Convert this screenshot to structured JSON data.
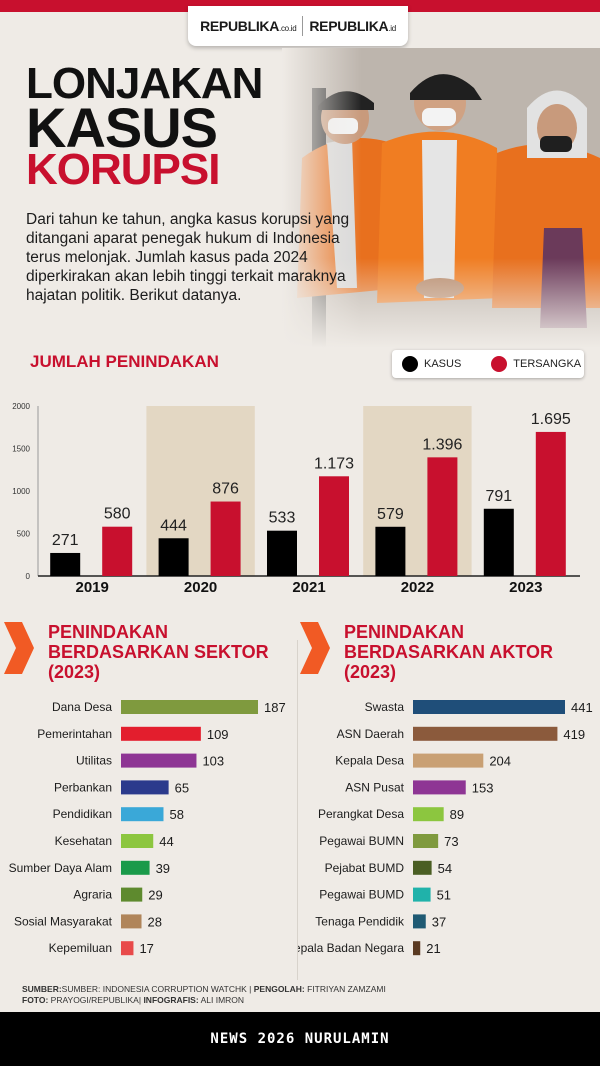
{
  "header": {
    "logo_left": "REPUBLIKA",
    "logo_left_suffix": ".co.id",
    "logo_right": "REPUBLIKA",
    "logo_right_suffix": ".id",
    "brand_color": "#c8102e"
  },
  "title": {
    "line1": "LONJAKAN",
    "line2": "KASUS",
    "line3": "KORUPSI"
  },
  "intro": "Dari tahun ke tahun, angka kasus korupsi yang ditangani aparat penegak hukum di Indonesia terus melonjak. Jumlah kasus pada 2024 diperkirakan akan lebih tinggi terkait maraknya hajatan politik. Berikut datanya.",
  "section1": {
    "title": "JUMLAH PENINDAKAN",
    "legend_kasus": "KASUS",
    "legend_tersangka": "TERSANGKA"
  },
  "section2": {
    "title_l1": "PENINDAKAN",
    "title_l2": "BERDASARKAN SEKTOR",
    "title_l3": "(2023)"
  },
  "section3": {
    "title_l1": "PENINDAKAN",
    "title_l2": "BERDASARKAN AKTOR",
    "title_l3": "(2023)"
  },
  "chart_data": [
    {
      "type": "bar",
      "title": "JUMLAH PENINDAKAN",
      "categories": [
        "2019",
        "2020",
        "2021",
        "2022",
        "2023"
      ],
      "series": [
        {
          "name": "KASUS",
          "values": [
            271,
            444,
            533,
            579,
            791
          ],
          "labels": [
            "271",
            "444",
            "533",
            "579",
            "791"
          ],
          "color": "#000000"
        },
        {
          "name": "TERSANGKA",
          "values": [
            580,
            876,
            1173,
            1396,
            1695
          ],
          "labels": [
            "580",
            "876",
            "1.173",
            "1.396",
            "1.695"
          ],
          "color": "#c8102e"
        }
      ],
      "ylim": [
        0,
        2000
      ],
      "yticks": [
        0,
        500,
        1000,
        1500,
        2000
      ],
      "legend": "top-right",
      "grid": false
    },
    {
      "type": "bar",
      "orientation": "horizontal",
      "title": "PENINDAKAN BERDASARKAN SEKTOR (2023)",
      "categories": [
        "Dana Desa",
        "Pemerintahan",
        "Utilitas",
        "Perbankan",
        "Pendidikan",
        "Kesehatan",
        "Sumber Daya Alam",
        "Agraria",
        "Sosial Masyarakat",
        "Kepemiluan"
      ],
      "values": [
        187,
        109,
        103,
        65,
        58,
        44,
        39,
        29,
        28,
        17
      ],
      "colors": [
        "#7f9a3e",
        "#e31e2d",
        "#8e3594",
        "#2b3a8c",
        "#3aa8d8",
        "#8cc63f",
        "#1a9a4a",
        "#5e8a2e",
        "#b0855a",
        "#e84a4a"
      ]
    },
    {
      "type": "bar",
      "orientation": "horizontal",
      "title": "PENINDAKAN BERDASARKAN AKTOR (2023)",
      "categories": [
        "Swasta",
        "ASN Daerah",
        "Kepala Desa",
        "ASN Pusat",
        "Perangkat Desa",
        "Pegawai BUMN",
        "Pejabat BUMD",
        "Pegawai BUMD",
        "Tenaga Pendidik",
        "Kepala Badan Negara"
      ],
      "values": [
        441,
        419,
        204,
        153,
        89,
        73,
        54,
        51,
        37,
        21
      ],
      "colors": [
        "#1f4e79",
        "#8b5a3c",
        "#c9a074",
        "#8e3594",
        "#8cc63f",
        "#7f9a3e",
        "#4a5e23",
        "#20b2aa",
        "#1f5a73",
        "#5a3a22"
      ]
    }
  ],
  "footer": {
    "sumber_label": "SUMBER:",
    "sumber": "SUMBER: INDONESIA CORRUPTION WATCHK",
    "pengolah_label": "PENGOLAH:",
    "pengolah": "FITRIYAN ZAMZAMI",
    "foto_label": "FOTO:",
    "foto": "PRAYOGI/REPUBLIKA",
    "infografis_label": "INFOGRAFIS:",
    "infografis": "ALI IMRON"
  },
  "watermark": "NEWS 2026 NURULAMIN"
}
